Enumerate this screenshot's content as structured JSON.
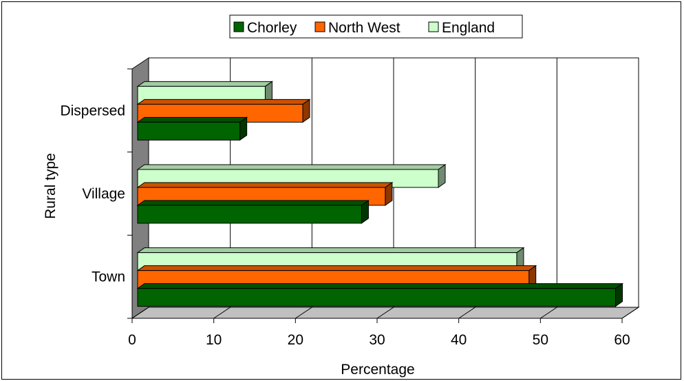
{
  "chart_data": {
    "type": "bar",
    "orientation": "horizontal",
    "three_d": true,
    "categories": [
      "Town",
      "Village",
      "Dispersed"
    ],
    "series": [
      {
        "name": "Chorley",
        "values": [
          59.2,
          28.1,
          13.2
        ],
        "color": "#006400"
      },
      {
        "name": "North West",
        "values": [
          48.6,
          31.0,
          20.9
        ],
        "color": "#FF6600"
      },
      {
        "name": "England",
        "values": [
          47.1,
          37.5,
          16.3
        ],
        "color": "#CCFFCC"
      }
    ],
    "xlabel": "Percentage",
    "ylabel": "Rural type",
    "xlim": [
      0,
      60
    ],
    "x_ticks": [
      "0",
      "10",
      "20",
      "30",
      "40",
      "50",
      "60"
    ],
    "grid": "vertical",
    "legend_position": "top"
  }
}
